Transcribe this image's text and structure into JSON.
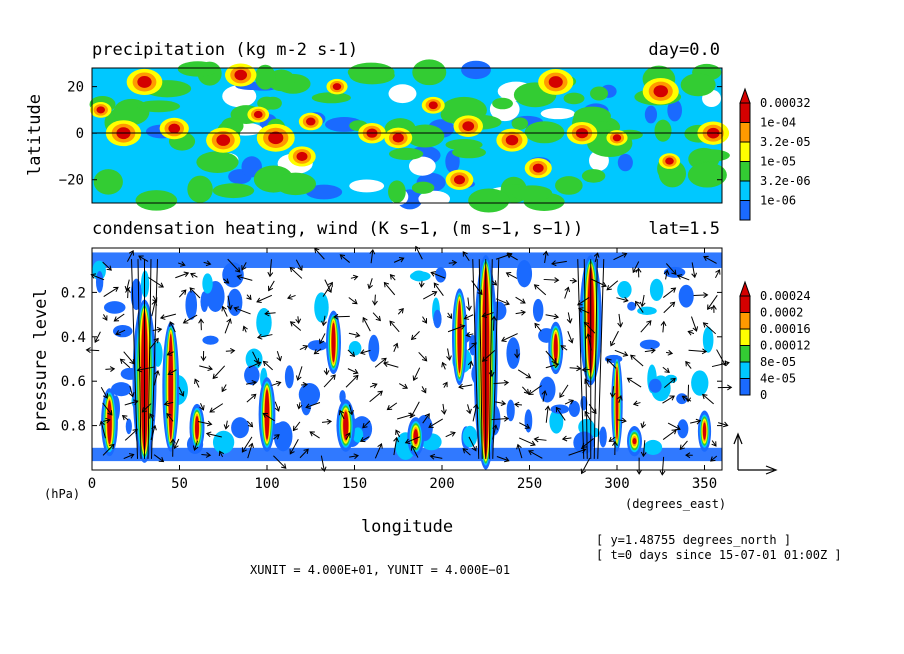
{
  "chart_data": [
    {
      "type": "heatmap",
      "title": "precipitation (kg m-2 s-1)",
      "corner_label": "day=0.0",
      "xlabel": "longitude",
      "ylabel": "latitude",
      "xlim": [
        0,
        360
      ],
      "ylim": [
        -30,
        28
      ],
      "yticks": [
        20,
        0,
        -20
      ],
      "yticklabels": [
        "20",
        "0",
        "−20"
      ],
      "legend_levels": [
        "0.00032",
        "1e-04",
        "3.2e-05",
        "1e-05",
        "3.2e-06",
        "1e-06"
      ],
      "legend_colors": [
        "#d40000",
        "#ff9a00",
        "#ffff00",
        "#33cc33",
        "#00c8ff",
        "#1a6aff"
      ]
    },
    {
      "type": "heatmap",
      "title": "condensation heating, wind (K s−1, (m s−1, s−1))",
      "corner_label": "lat=1.5",
      "xlabel": "longitude",
      "ylabel": "pressure level",
      "xunit_label": "(degrees_east)",
      "yunit_label": "(hPa)",
      "xlim": [
        0,
        360
      ],
      "ylim": [
        1.0,
        0.0
      ],
      "xticks": [
        0,
        50,
        100,
        150,
        200,
        250,
        300,
        350
      ],
      "yticks": [
        0.2,
        0.4,
        0.6,
        0.8
      ],
      "legend_levels": [
        "0.00024",
        "0.0002",
        "0.00016",
        "0.00012",
        "8e-05",
        "4e-05",
        "0"
      ],
      "legend_colors": [
        "#d40000",
        "#ff9a00",
        "#ffff00",
        "#33cc33",
        "#00c8ff",
        "#1a6aff"
      ],
      "vector_scale": {
        "xunit": "4.000E+01",
        "yunit": "4.000E−01"
      }
    }
  ],
  "footer": {
    "vector_units": "XUNIT = 4.000E+01, YUNIT = 4.000E−01",
    "y_info": "[ y=1.48755 degrees_north ]",
    "t_info": "[ t=0 days since 15-07-01 01:00Z ]"
  }
}
